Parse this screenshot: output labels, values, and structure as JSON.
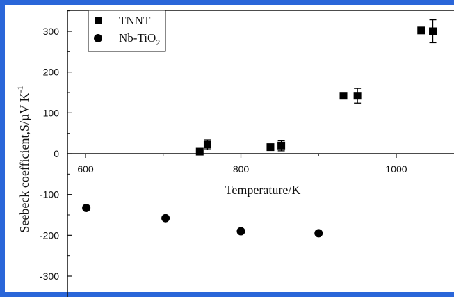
{
  "chart_data": {
    "type": "scatter",
    "xlabel": "Temperature/K",
    "ylabel_main": "Seebeck coefficient,S/µV K",
    "ylabel_sup": "-1",
    "xlim": [
      590,
      1060
    ],
    "ylim": [
      -360,
      350
    ],
    "x_ticks": [
      600,
      800,
      1000
    ],
    "x_tick_labels": [
      "600",
      "800",
      "1000"
    ],
    "y_ticks": [
      -300,
      -200,
      -100,
      0,
      100,
      200,
      300
    ],
    "y_tick_labels": [
      "-300",
      "-200",
      "-100",
      "0",
      "100",
      "200",
      "300"
    ],
    "legend_position": "top-left",
    "series": [
      {
        "name": "TNNT",
        "marker": "square",
        "points": [
          {
            "x": 747,
            "y": 5
          },
          {
            "x": 757,
            "y": 22,
            "err": 12
          },
          {
            "x": 838,
            "y": 16
          },
          {
            "x": 852,
            "y": 20,
            "err": 13
          },
          {
            "x": 932,
            "y": 142
          },
          {
            "x": 950,
            "y": 142,
            "err": 18
          },
          {
            "x": 1032,
            "y": 302
          },
          {
            "x": 1047,
            "y": 300,
            "err": 28
          }
        ]
      },
      {
        "name_main": "Nb-TiO",
        "name_sub": "2",
        "marker": "circle",
        "points": [
          {
            "x": 601,
            "y": -133
          },
          {
            "x": 703,
            "y": -158
          },
          {
            "x": 800,
            "y": -190
          },
          {
            "x": 900,
            "y": -195
          }
        ]
      }
    ]
  }
}
